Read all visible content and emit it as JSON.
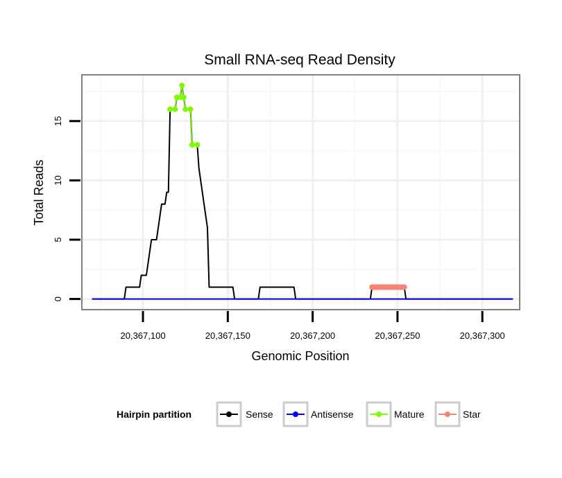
{
  "chart_data": {
    "type": "line",
    "title": "Small RNA-seq Read Density",
    "xlabel": "Genomic Position",
    "ylabel": "Total Reads",
    "xlim": [
      20367064,
      20367322
    ],
    "ylim": [
      -0.9,
      18.9
    ],
    "grid": true,
    "x_ticks": [
      {
        "value": 20367100,
        "label": "20,367,100"
      },
      {
        "value": 20367150,
        "label": "20,367,150"
      },
      {
        "value": 20367200,
        "label": "20,367,200"
      },
      {
        "value": 20367250,
        "label": "20,367,250"
      },
      {
        "value": 20367300,
        "label": "20,367,300"
      }
    ],
    "y_ticks": [
      {
        "value": 0,
        "label": "0"
      },
      {
        "value": 5,
        "label": "5"
      },
      {
        "value": 10,
        "label": "10"
      },
      {
        "value": 15,
        "label": "15"
      }
    ],
    "legend": {
      "title": "Hairpin partition",
      "position": "bottom",
      "entries": [
        {
          "name": "Sense",
          "color": "#000000"
        },
        {
          "name": "Antisense",
          "color": "#0000ff"
        },
        {
          "name": "Mature",
          "color": "#7cfc00"
        },
        {
          "name": "Star",
          "color": "#fa8072"
        }
      ]
    },
    "series": [
      {
        "name": "Sense",
        "color": "#000000",
        "points": [
          [
            20367070,
            0
          ],
          [
            20367089,
            0
          ],
          [
            20367090,
            1
          ],
          [
            20367098,
            1
          ],
          [
            20367099,
            2
          ],
          [
            20367102,
            2
          ],
          [
            20367103,
            3
          ],
          [
            20367104,
            4
          ],
          [
            20367105,
            5
          ],
          [
            20367108,
            5
          ],
          [
            20367109,
            6
          ],
          [
            20367110,
            7
          ],
          [
            20367111,
            8
          ],
          [
            20367113,
            8
          ],
          [
            20367114,
            9
          ],
          [
            20367115,
            9
          ],
          [
            20367116,
            16
          ],
          [
            20367119,
            16
          ],
          [
            20367120,
            17
          ],
          [
            20367122,
            17
          ],
          [
            20367123,
            18
          ],
          [
            20367124,
            17
          ],
          [
            20367125,
            16
          ],
          [
            20367128,
            16
          ],
          [
            20367129,
            13
          ],
          [
            20367132,
            13
          ],
          [
            20367133,
            11
          ],
          [
            20367134,
            10
          ],
          [
            20367135,
            9
          ],
          [
            20367136,
            8
          ],
          [
            20367137,
            7
          ],
          [
            20367138,
            6
          ],
          [
            20367139,
            1
          ],
          [
            20367153,
            1
          ],
          [
            20367154,
            0
          ],
          [
            20367168,
            0
          ],
          [
            20367169,
            1
          ],
          [
            20367189,
            1
          ],
          [
            20367190,
            0
          ],
          [
            20367234,
            0
          ],
          [
            20367235,
            1
          ],
          [
            20367254,
            1
          ],
          [
            20367255,
            0
          ],
          [
            20367318,
            0
          ]
        ]
      },
      {
        "name": "Antisense",
        "color": "#0000ff",
        "points": [
          [
            20367070,
            0
          ],
          [
            20367318,
            0
          ]
        ]
      },
      {
        "name": "Mature",
        "color": "#7cfc00",
        "points": [
          [
            20367116,
            16
          ],
          [
            20367119,
            16
          ],
          [
            20367120,
            17
          ],
          [
            20367122,
            17
          ],
          [
            20367123,
            18
          ],
          [
            20367124,
            17
          ],
          [
            20367125,
            16
          ],
          [
            20367128,
            16
          ],
          [
            20367129,
            13
          ],
          [
            20367132,
            13
          ]
        ]
      },
      {
        "name": "Star",
        "color": "#fa8072",
        "points": [
          [
            20367235,
            1
          ],
          [
            20367236,
            1
          ],
          [
            20367237,
            1
          ],
          [
            20367238,
            1
          ],
          [
            20367239,
            1
          ],
          [
            20367240,
            1
          ],
          [
            20367241,
            1
          ],
          [
            20367242,
            1
          ],
          [
            20367243,
            1
          ],
          [
            20367244,
            1
          ],
          [
            20367245,
            1
          ],
          [
            20367246,
            1
          ],
          [
            20367247,
            1
          ],
          [
            20367248,
            1
          ],
          [
            20367249,
            1
          ],
          [
            20367250,
            1
          ],
          [
            20367251,
            1
          ],
          [
            20367252,
            1
          ],
          [
            20367253,
            1
          ],
          [
            20367254,
            1
          ]
        ]
      }
    ]
  }
}
